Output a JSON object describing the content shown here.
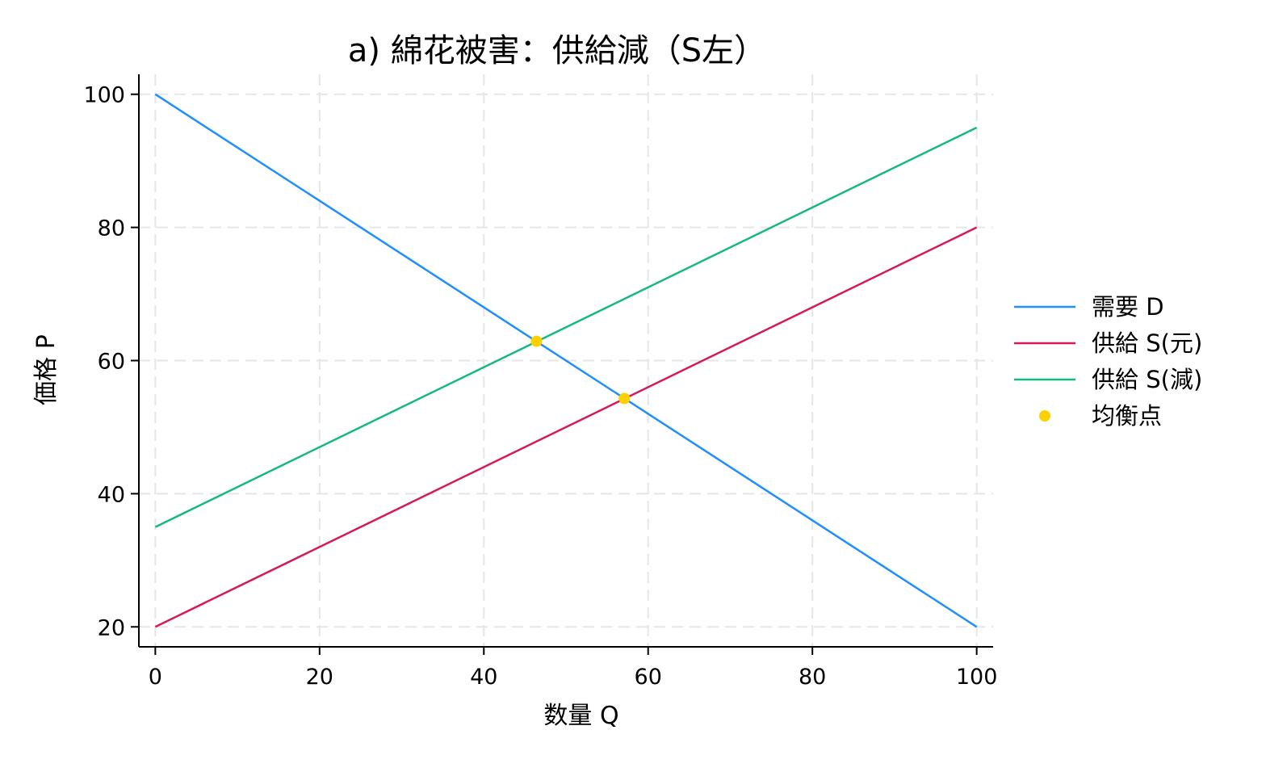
{
  "chart_data": {
    "type": "line",
    "title": "a) 綿花被害：供給減（S左）",
    "xlabel": "数量 Q",
    "ylabel": "価格 P",
    "xlim": [
      -2,
      102
    ],
    "ylim": [
      17,
      103
    ],
    "xticks": [
      0,
      20,
      40,
      60,
      80,
      100
    ],
    "yticks": [
      20,
      40,
      60,
      80,
      100
    ],
    "grid": true,
    "legend_position": "right",
    "series": [
      {
        "name": "需要 D",
        "color": "#1f8fff",
        "x": [
          0,
          100
        ],
        "y": [
          100,
          20
        ]
      },
      {
        "name": "供給 S(元)",
        "color": "#d6195a",
        "x": [
          0,
          100
        ],
        "y": [
          20,
          80
        ]
      },
      {
        "name": "供給 S(減)",
        "color": "#14b981",
        "x": [
          0,
          100
        ],
        "y": [
          35,
          95
        ]
      }
    ],
    "points": {
      "name": "均衡点",
      "color": "#ffd000",
      "data": [
        {
          "x": 46.4,
          "y": 62.9
        },
        {
          "x": 57.1,
          "y": 54.3
        }
      ]
    }
  }
}
